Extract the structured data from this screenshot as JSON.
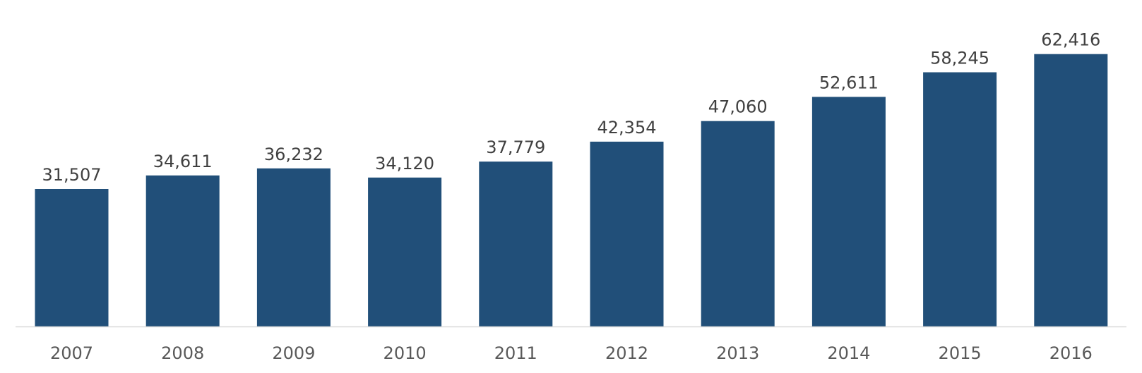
{
  "chart_data": {
    "type": "bar",
    "categories": [
      "2007",
      "2008",
      "2009",
      "2010",
      "2011",
      "2012",
      "2013",
      "2014",
      "2015",
      "2016"
    ],
    "values": [
      31507,
      34611,
      36232,
      34120,
      37779,
      42354,
      47060,
      52611,
      58245,
      62416
    ],
    "value_labels": [
      "31,507",
      "34,611",
      "36,232",
      "34,120",
      "37,779",
      "42,354",
      "47,060",
      "52,611",
      "58,245",
      "62,416"
    ],
    "title": "",
    "xlabel": "",
    "ylabel": "",
    "ylim": [
      0,
      70000
    ],
    "grid": false,
    "legend": "none",
    "colors": {
      "bar": "#214f79",
      "axis": "#d9d9d9",
      "value_text": "#404040",
      "category_text": "#595959"
    }
  }
}
